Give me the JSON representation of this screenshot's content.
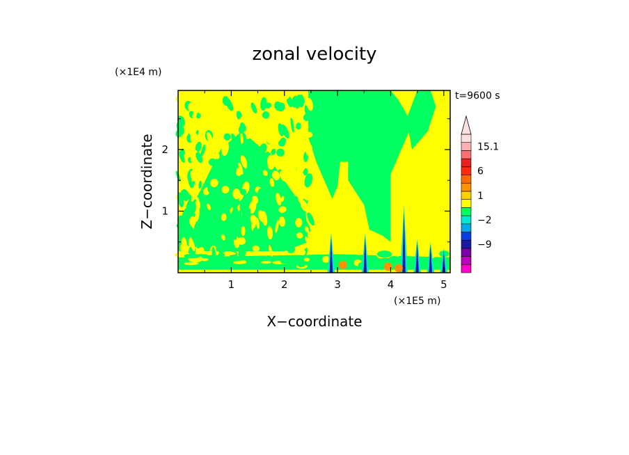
{
  "chart_data": {
    "type": "heatmap",
    "title": "zonal velocity",
    "xlabel": "X−coordinate",
    "ylabel": "Z−coordinate",
    "x_unit": "(×1E5 m)",
    "y_unit": "(×1E4 m)",
    "time_label": "t=9600 s",
    "xlim": [
      0,
      5.12
    ],
    "ylim": [
      0,
      2.96
    ],
    "xticks": [
      1,
      2,
      3,
      4,
      5
    ],
    "xtick_labels": [
      "1",
      "2",
      "3",
      "4",
      "5"
    ],
    "yticks": [
      1,
      2
    ],
    "ytick_labels": [
      "1",
      "2"
    ],
    "colorbar": {
      "colors": [
        "#ff00cc",
        "#bb00bb",
        "#7a00a8",
        "#1a1aa0",
        "#0a3de0",
        "#00a8e8",
        "#00e8d0",
        "#00ff60",
        "#ffff00",
        "#ffd000",
        "#ff9000",
        "#ff6a00",
        "#ff2a10",
        "#e82020",
        "#ff7070",
        "#ffb0b0",
        "#ffe0e0"
      ],
      "ticks": [
        {
          "label": "15.1",
          "index": 15
        },
        {
          "label": "6",
          "index": 12
        },
        {
          "label": "1",
          "index": 9
        },
        {
          "label": "−2",
          "index": 6
        },
        {
          "label": "−9",
          "index": 3
        }
      ]
    },
    "regions": [
      {
        "value": "0..1",
        "color": "#00ff60",
        "shape": [
          [
            2.45,
            2.96
          ],
          [
            4.0,
            2.96
          ],
          [
            4.15,
            2.8
          ],
          [
            4.35,
            2.5
          ],
          [
            4.35,
            2.3
          ],
          [
            4.0,
            1.6
          ],
          [
            4.0,
            0.5
          ],
          [
            3.85,
            0.6
          ],
          [
            3.6,
            0.7
          ],
          [
            3.5,
            1.1
          ],
          [
            3.2,
            1.5
          ],
          [
            3.2,
            1.8
          ],
          [
            3.05,
            1.8
          ],
          [
            3.0,
            1.4
          ],
          [
            2.9,
            1.2
          ],
          [
            2.75,
            1.5
          ],
          [
            2.6,
            1.8
          ],
          [
            2.45,
            2.2
          ]
        ]
      },
      {
        "value": "0..1",
        "color": "#00ff60",
        "shape": [
          [
            4.4,
            2.0
          ],
          [
            4.7,
            2.3
          ],
          [
            4.85,
            2.7
          ],
          [
            4.75,
            2.96
          ],
          [
            4.5,
            2.96
          ],
          [
            4.3,
            2.5
          ]
        ]
      },
      {
        "value": "0..1",
        "color": "#00ff60",
        "shape": [
          [
            0.0,
            0.7
          ],
          [
            0.4,
            1.3
          ],
          [
            0.8,
            2.0
          ],
          [
            1.2,
            2.3
          ],
          [
            1.6,
            2.0
          ],
          [
            2.0,
            1.5
          ],
          [
            2.4,
            1.0
          ],
          [
            2.45,
            0.5
          ],
          [
            2.0,
            0.35
          ],
          [
            1.0,
            0.35
          ],
          [
            0.0,
            0.35
          ]
        ]
      },
      {
        "value": "0..1",
        "color": "#00ff60",
        "shape": [
          [
            0.0,
            0.05
          ],
          [
            5.12,
            0.05
          ],
          [
            5.12,
            0.25
          ],
          [
            3.0,
            0.3
          ],
          [
            0.0,
            0.25
          ]
        ]
      }
    ]
  }
}
